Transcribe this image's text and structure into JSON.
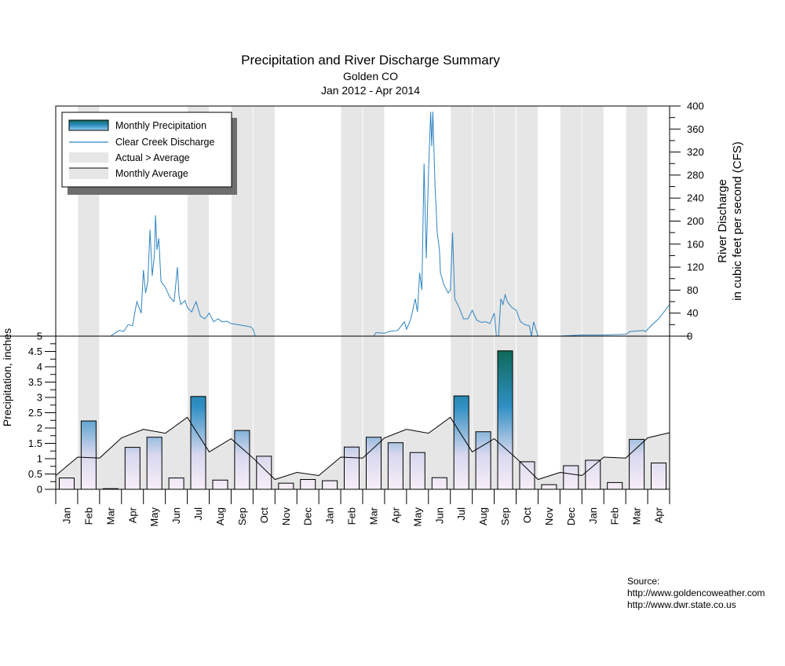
{
  "chart_data": {
    "type": "bar+line",
    "title": "Precipitation and River Discharge Summary",
    "subtitle": "Golden CO",
    "date_range": "Jan 2012 - Apr 2014",
    "months": [
      "Jan",
      "Feb",
      "Mar",
      "Apr",
      "May",
      "Jun",
      "Jul",
      "Aug",
      "Sep",
      "Oct",
      "Nov",
      "Dec",
      "Jan",
      "Feb",
      "Mar",
      "Apr",
      "May",
      "Jun",
      "Jul",
      "Aug",
      "Sep",
      "Oct",
      "Nov",
      "Dec",
      "Jan",
      "Feb",
      "Mar",
      "Apr"
    ],
    "precip_axis": {
      "ylabel": "Precipitation, inches",
      "ylim": [
        0,
        5
      ],
      "ticks": [
        "0",
        "0.5",
        "1",
        "1.5",
        "2",
        "2.5",
        "3",
        "3.5",
        "4",
        "4.5",
        "5"
      ]
    },
    "discharge_axis": {
      "ylabel_line1": "River Discharge",
      "ylabel_line2": "in cubic feet per second (CFS)",
      "ylim": [
        0,
        400
      ],
      "ticks": [
        "0",
        "40",
        "80",
        "120",
        "160",
        "200",
        "240",
        "280",
        "320",
        "360",
        "400"
      ]
    },
    "monthly_precipitation": [
      0.37,
      2.23,
      0.02,
      1.37,
      1.7,
      0.37,
      3.03,
      0.3,
      1.92,
      1.08,
      0.2,
      0.32,
      0.28,
      1.38,
      1.7,
      1.52,
      1.2,
      0.38,
      3.05,
      1.88,
      4.52,
      0.9,
      0.15,
      0.77,
      0.95,
      0.22,
      1.63,
      0.86
    ],
    "monthly_average": [
      0.45,
      1.05,
      1.02,
      1.68,
      1.96,
      1.83,
      2.35,
      1.22,
      1.65,
      1.02,
      0.32,
      0.55,
      0.45,
      1.05,
      1.02,
      1.68,
      1.96,
      1.83,
      2.35,
      1.22,
      1.65,
      1.02,
      0.32,
      0.55,
      0.45,
      1.05,
      1.02,
      1.68,
      1.85
    ],
    "discharge_keypoints": [
      [
        0.0,
        0
      ],
      [
        0.8,
        0
      ],
      [
        1.0,
        0
      ],
      [
        2.0,
        0
      ],
      [
        2.5,
        0
      ],
      [
        2.9,
        10
      ],
      [
        3.1,
        8
      ],
      [
        3.3,
        20
      ],
      [
        3.5,
        18
      ],
      [
        3.7,
        60
      ],
      [
        3.9,
        40
      ],
      [
        4.0,
        115
      ],
      [
        4.1,
        75
      ],
      [
        4.2,
        95
      ],
      [
        4.3,
        185
      ],
      [
        4.4,
        105
      ],
      [
        4.5,
        140
      ],
      [
        4.55,
        210
      ],
      [
        4.62,
        150
      ],
      [
        4.7,
        170
      ],
      [
        4.8,
        95
      ],
      [
        5.0,
        85
      ],
      [
        5.2,
        68
      ],
      [
        5.4,
        60
      ],
      [
        5.55,
        120
      ],
      [
        5.62,
        70
      ],
      [
        5.7,
        55
      ],
      [
        5.9,
        62
      ],
      [
        6.0,
        50
      ],
      [
        6.2,
        42
      ],
      [
        6.4,
        60
      ],
      [
        6.6,
        35
      ],
      [
        6.8,
        30
      ],
      [
        7.0,
        40
      ],
      [
        7.2,
        25
      ],
      [
        7.4,
        30
      ],
      [
        7.6,
        25
      ],
      [
        7.8,
        26
      ],
      [
        8.0,
        22
      ],
      [
        8.3,
        20
      ],
      [
        8.6,
        18
      ],
      [
        8.9,
        16
      ],
      [
        9.0,
        12
      ],
      [
        9.1,
        0
      ],
      [
        10.0,
        0
      ],
      [
        11.0,
        0
      ],
      [
        12.0,
        0
      ],
      [
        13.0,
        0
      ],
      [
        14.0,
        0
      ],
      [
        14.5,
        0
      ],
      [
        14.6,
        6
      ],
      [
        15.0,
        5
      ],
      [
        15.2,
        8
      ],
      [
        15.6,
        10
      ],
      [
        15.9,
        25
      ],
      [
        16.0,
        12
      ],
      [
        16.2,
        30
      ],
      [
        16.4,
        65
      ],
      [
        16.5,
        42
      ],
      [
        16.6,
        110
      ],
      [
        16.7,
        80
      ],
      [
        16.8,
        300
      ],
      [
        16.9,
        135
      ],
      [
        17.0,
        280
      ],
      [
        17.1,
        390
      ],
      [
        17.15,
        330
      ],
      [
        17.2,
        390
      ],
      [
        17.3,
        260
      ],
      [
        17.4,
        180
      ],
      [
        17.5,
        150
      ],
      [
        17.55,
        110
      ],
      [
        17.7,
        90
      ],
      [
        17.9,
        75
      ],
      [
        18.0,
        80
      ],
      [
        18.1,
        180
      ],
      [
        18.2,
        65
      ],
      [
        18.4,
        50
      ],
      [
        18.6,
        30
      ],
      [
        18.8,
        30
      ],
      [
        19.0,
        45
      ],
      [
        19.2,
        28
      ],
      [
        19.4,
        24
      ],
      [
        19.6,
        25
      ],
      [
        19.8,
        22
      ],
      [
        20.0,
        40
      ],
      [
        20.1,
        0
      ],
      [
        20.2,
        0
      ],
      [
        20.3,
        65
      ],
      [
        20.4,
        55
      ],
      [
        20.5,
        72
      ],
      [
        20.6,
        60
      ],
      [
        20.8,
        50
      ],
      [
        21.0,
        45
      ],
      [
        21.2,
        25
      ],
      [
        21.4,
        20
      ],
      [
        21.6,
        18
      ],
      [
        21.7,
        0
      ],
      [
        21.8,
        25
      ],
      [
        21.9,
        12
      ],
      [
        22.0,
        0
      ],
      [
        23.0,
        0
      ],
      [
        24.0,
        2
      ],
      [
        25.0,
        2
      ],
      [
        26.0,
        3
      ],
      [
        26.2,
        8
      ],
      [
        26.8,
        10
      ],
      [
        26.9,
        8
      ],
      [
        27.2,
        20
      ],
      [
        27.5,
        30
      ],
      [
        27.8,
        45
      ],
      [
        28.0,
        55
      ]
    ]
  },
  "legend": {
    "items": [
      "Monthly Precipitation",
      "Clear Creek Discharge",
      "Actual > Average",
      "Monthly Average"
    ]
  },
  "source": {
    "label": "Source:",
    "lines": [
      "http://www.goldencoweather.com",
      "http://www.dwr.state.co.us"
    ]
  },
  "colors": {
    "bar_top": "#0e6a5a",
    "bar_mid": "#2f8fc4",
    "bar_low": "#d8d8ee",
    "bar_base": "#f8eef8",
    "discharge": "#2f84c0",
    "shade": "#e6e6e6"
  }
}
